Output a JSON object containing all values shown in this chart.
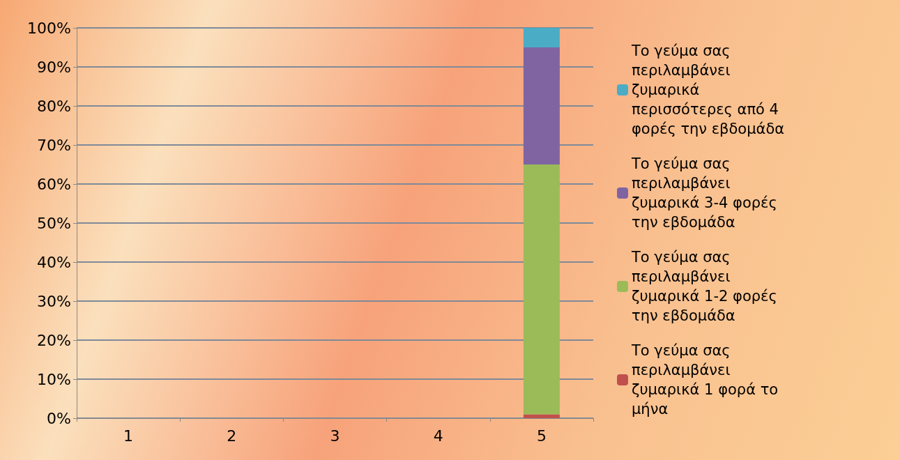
{
  "chart_data": {
    "type": "bar",
    "stacked": true,
    "categories": [
      "1",
      "2",
      "3",
      "4",
      "5"
    ],
    "series": [
      {
        "name": "Το γεύμα σας περιλαμβάνει ζυμαρικά 1 φορά το μήνα",
        "color": "#c0504d",
        "values": [
          null,
          null,
          null,
          null,
          1
        ]
      },
      {
        "name": "Το γεύμα σας περιλαμβάνει ζυμαρικά 1-2 φορές την εβδομάδα",
        "color": "#9bbb59",
        "values": [
          null,
          null,
          null,
          null,
          64
        ]
      },
      {
        "name": "Το γεύμα σας περιλαμβάνει ζυμαρικά 3-4 φορές την εβδομάδα",
        "color": "#8064a2",
        "values": [
          null,
          null,
          null,
          null,
          30
        ]
      },
      {
        "name": "Το γεύμα σας περιλαμβάνει ζυμαρικά περισσότερες από 4 φορές την εβδομάδα",
        "color": "#4bacc6",
        "values": [
          null,
          null,
          null,
          null,
          5
        ]
      }
    ],
    "ylim": [
      0,
      100
    ],
    "yticks": [
      {
        "value": 0,
        "label": "0%"
      },
      {
        "value": 10,
        "label": "10%"
      },
      {
        "value": 20,
        "label": "20%"
      },
      {
        "value": 30,
        "label": "30%"
      },
      {
        "value": 40,
        "label": "40%"
      },
      {
        "value": 50,
        "label": "50%"
      },
      {
        "value": 60,
        "label": "60%"
      },
      {
        "value": 70,
        "label": "70%"
      },
      {
        "value": 80,
        "label": "80%"
      },
      {
        "value": 90,
        "label": "90%"
      },
      {
        "value": 100,
        "label": "100%"
      }
    ],
    "grid": "y",
    "legend": "right"
  }
}
